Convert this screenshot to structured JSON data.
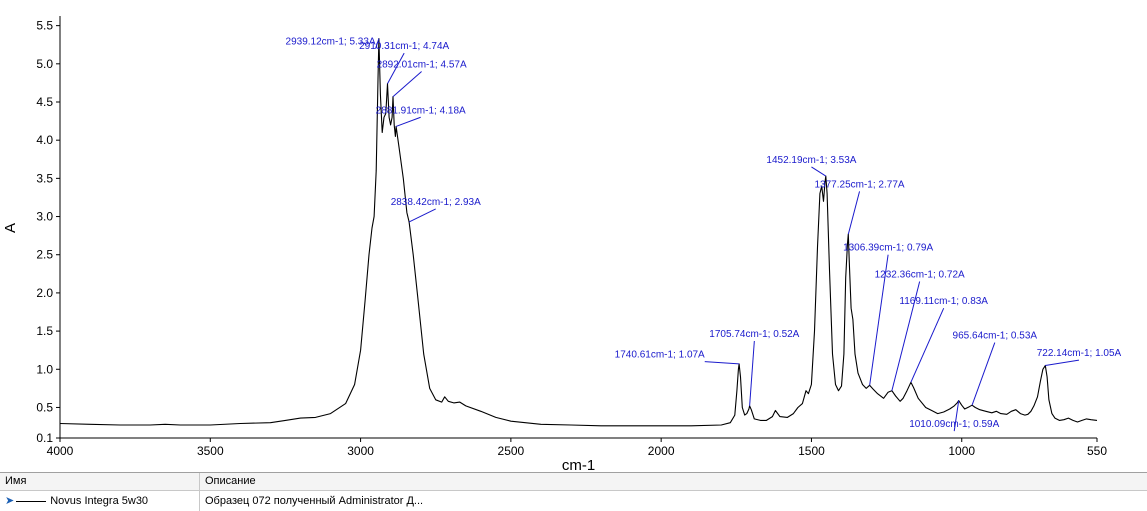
{
  "chart_data": {
    "type": "line",
    "xlabel": "cm-1",
    "ylabel": "A",
    "xlim": [
      4000,
      550
    ],
    "ylim": [
      0.1,
      5.6
    ],
    "x_ticks": [
      4000,
      3500,
      3000,
      2500,
      2000,
      1500,
      1000,
      550
    ],
    "y_ticks": [
      0.1,
      0.5,
      1.0,
      1.5,
      2.0,
      2.5,
      3.0,
      3.5,
      4.0,
      4.5,
      5.0,
      5.5
    ],
    "x_tick_labels": [
      "4000",
      "3500",
      "3000",
      "2500",
      "2000",
      "1500",
      "1000",
      "550"
    ],
    "y_tick_labels": [
      "0.1",
      "0.5",
      "1.0",
      "1.5",
      "2.0",
      "2.5",
      "3.0",
      "3.5",
      "4.0",
      "4.5",
      "5.0",
      "5.5"
    ],
    "grid": false,
    "series": [
      {
        "name": "Novus Integra 5w30",
        "color": "#000000",
        "points": [
          [
            4000,
            0.29
          ],
          [
            3900,
            0.28
          ],
          [
            3800,
            0.27
          ],
          [
            3700,
            0.27
          ],
          [
            3650,
            0.28
          ],
          [
            3600,
            0.27
          ],
          [
            3500,
            0.27
          ],
          [
            3400,
            0.29
          ],
          [
            3300,
            0.3
          ],
          [
            3250,
            0.33
          ],
          [
            3200,
            0.36
          ],
          [
            3150,
            0.37
          ],
          [
            3100,
            0.42
          ],
          [
            3050,
            0.55
          ],
          [
            3020,
            0.8
          ],
          [
            3000,
            1.25
          ],
          [
            2985,
            1.9
          ],
          [
            2972,
            2.5
          ],
          [
            2962,
            2.85
          ],
          [
            2955,
            3.0
          ],
          [
            2948,
            3.6
          ],
          [
            2942,
            4.8
          ],
          [
            2939.12,
            5.33
          ],
          [
            2934,
            4.6
          ],
          [
            2928,
            4.1
          ],
          [
            2922,
            4.3
          ],
          [
            2916,
            4.35
          ],
          [
            2910.31,
            4.74
          ],
          [
            2905,
            4.3
          ],
          [
            2900,
            4.2
          ],
          [
            2895,
            4.3
          ],
          [
            2892.01,
            4.57
          ],
          [
            2888,
            4.2
          ],
          [
            2884,
            4.05
          ],
          [
            2881.91,
            4.18
          ],
          [
            2872,
            3.9
          ],
          [
            2858,
            3.5
          ],
          [
            2846,
            3.05
          ],
          [
            2838.42,
            2.93
          ],
          [
            2825,
            2.5
          ],
          [
            2810,
            1.95
          ],
          [
            2790,
            1.2
          ],
          [
            2770,
            0.75
          ],
          [
            2750,
            0.6
          ],
          [
            2730,
            0.57
          ],
          [
            2720,
            0.64
          ],
          [
            2708,
            0.58
          ],
          [
            2690,
            0.56
          ],
          [
            2670,
            0.57
          ],
          [
            2650,
            0.52
          ],
          [
            2600,
            0.45
          ],
          [
            2550,
            0.37
          ],
          [
            2500,
            0.32
          ],
          [
            2400,
            0.28
          ],
          [
            2300,
            0.27
          ],
          [
            2200,
            0.26
          ],
          [
            2100,
            0.26
          ],
          [
            2000,
            0.26
          ],
          [
            1900,
            0.26
          ],
          [
            1800,
            0.27
          ],
          [
            1770,
            0.3
          ],
          [
            1755,
            0.4
          ],
          [
            1748,
            0.72
          ],
          [
            1743,
            1.0
          ],
          [
            1740.61,
            1.07
          ],
          [
            1736,
            0.9
          ],
          [
            1730,
            0.5
          ],
          [
            1722,
            0.4
          ],
          [
            1715,
            0.42
          ],
          [
            1708,
            0.48
          ],
          [
            1705.74,
            0.52
          ],
          [
            1700,
            0.47
          ],
          [
            1690,
            0.35
          ],
          [
            1670,
            0.33
          ],
          [
            1650,
            0.33
          ],
          [
            1630,
            0.38
          ],
          [
            1620,
            0.46
          ],
          [
            1605,
            0.38
          ],
          [
            1580,
            0.37
          ],
          [
            1560,
            0.42
          ],
          [
            1545,
            0.5
          ],
          [
            1530,
            0.55
          ],
          [
            1518,
            0.72
          ],
          [
            1510,
            0.68
          ],
          [
            1500,
            0.8
          ],
          [
            1490,
            1.5
          ],
          [
            1480,
            2.6
          ],
          [
            1472,
            3.3
          ],
          [
            1466,
            3.4
          ],
          [
            1460,
            3.2
          ],
          [
            1455,
            3.45
          ],
          [
            1452.19,
            3.53
          ],
          [
            1448,
            3.3
          ],
          [
            1440,
            2.3
          ],
          [
            1430,
            1.2
          ],
          [
            1420,
            0.8
          ],
          [
            1410,
            0.72
          ],
          [
            1400,
            0.78
          ],
          [
            1392,
            1.2
          ],
          [
            1386,
            2.2
          ],
          [
            1380,
            2.65
          ],
          [
            1377.25,
            2.77
          ],
          [
            1374,
            2.4
          ],
          [
            1368,
            1.8
          ],
          [
            1362,
            1.65
          ],
          [
            1355,
            1.2
          ],
          [
            1345,
            0.95
          ],
          [
            1330,
            0.8
          ],
          [
            1318,
            0.75
          ],
          [
            1306.39,
            0.79
          ],
          [
            1295,
            0.74
          ],
          [
            1280,
            0.68
          ],
          [
            1260,
            0.62
          ],
          [
            1245,
            0.7
          ],
          [
            1232.36,
            0.72
          ],
          [
            1220,
            0.65
          ],
          [
            1205,
            0.58
          ],
          [
            1195,
            0.62
          ],
          [
            1182,
            0.72
          ],
          [
            1169.11,
            0.83
          ],
          [
            1160,
            0.76
          ],
          [
            1145,
            0.62
          ],
          [
            1120,
            0.5
          ],
          [
            1100,
            0.46
          ],
          [
            1080,
            0.42
          ],
          [
            1060,
            0.44
          ],
          [
            1040,
            0.48
          ],
          [
            1025,
            0.52
          ],
          [
            1015,
            0.56
          ],
          [
            1010.09,
            0.59
          ],
          [
            1000,
            0.53
          ],
          [
            990,
            0.48
          ],
          [
            975,
            0.51
          ],
          [
            965.64,
            0.53
          ],
          [
            955,
            0.5
          ],
          [
            940,
            0.47
          ],
          [
            920,
            0.45
          ],
          [
            900,
            0.43
          ],
          [
            885,
            0.45
          ],
          [
            870,
            0.42
          ],
          [
            850,
            0.41
          ],
          [
            835,
            0.45
          ],
          [
            820,
            0.47
          ],
          [
            805,
            0.42
          ],
          [
            790,
            0.4
          ],
          [
            780,
            0.41
          ],
          [
            770,
            0.45
          ],
          [
            760,
            0.52
          ],
          [
            748,
            0.64
          ],
          [
            738,
            0.85
          ],
          [
            730,
            1.0
          ],
          [
            722.14,
            1.05
          ],
          [
            716,
            0.9
          ],
          [
            710,
            0.6
          ],
          [
            700,
            0.42
          ],
          [
            690,
            0.36
          ],
          [
            675,
            0.33
          ],
          [
            660,
            0.34
          ],
          [
            645,
            0.36
          ],
          [
            630,
            0.33
          ],
          [
            615,
            0.31
          ],
          [
            600,
            0.33
          ],
          [
            585,
            0.35
          ],
          [
            570,
            0.34
          ],
          [
            550,
            0.33
          ]
        ]
      }
    ],
    "annotations": [
      {
        "text": "2939.12cm-1; 5.33A",
        "x": 2939.12,
        "y": 5.33,
        "label_x": 2950,
        "label_y": 5.2,
        "label_dx": -1,
        "align": "end"
      },
      {
        "text": "2910.31cm-1; 4.74A",
        "x": 2910.31,
        "y": 4.74,
        "label_x": 2855,
        "label_y": 5.14,
        "label_dx": 1,
        "align": "middle"
      },
      {
        "text": "2892.01cm-1; 4.57A",
        "x": 2892.01,
        "y": 4.57,
        "label_x": 2797,
        "label_y": 4.9,
        "label_dx": 1,
        "align": "middle"
      },
      {
        "text": "2881.91cm-1; 4.18A",
        "x": 2881.91,
        "y": 4.18,
        "label_x": 2800,
        "label_y": 4.3,
        "label_dx": 1,
        "align": "middle"
      },
      {
        "text": "2838.42cm-1; 2.93A",
        "x": 2838.42,
        "y": 2.93,
        "label_x": 2750,
        "label_y": 3.1,
        "label_dx": 1,
        "align": "middle"
      },
      {
        "text": "1740.61cm-1; 1.07A",
        "x": 1740.61,
        "y": 1.07,
        "label_x": 1855,
        "label_y": 1.1,
        "label_dx": -1,
        "align": "end"
      },
      {
        "text": "1705.74cm-1; 0.52A",
        "x": 1705.74,
        "y": 0.52,
        "label_x": 1690,
        "label_y": 1.37,
        "label_dx": 1,
        "align": "middle"
      },
      {
        "text": "1452.19cm-1; 3.53A",
        "x": 1452.19,
        "y": 3.53,
        "label_x": 1500,
        "label_y": 3.65,
        "label_dx": 1,
        "align": "middle"
      },
      {
        "text": "1377.25cm-1; 2.77A",
        "x": 1377.25,
        "y": 2.77,
        "label_x": 1340,
        "label_y": 3.33,
        "label_dx": 1,
        "align": "middle"
      },
      {
        "text": "1306.39cm-1; 0.79A",
        "x": 1306.39,
        "y": 0.79,
        "label_x": 1245,
        "label_y": 2.5,
        "label_dx": 1,
        "align": "middle"
      },
      {
        "text": "1232.36cm-1; 0.72A",
        "x": 1232.36,
        "y": 0.72,
        "label_x": 1140,
        "label_y": 2.15,
        "label_dx": 1,
        "align": "middle"
      },
      {
        "text": "1169.11cm-1; 0.83A",
        "x": 1169.11,
        "y": 0.83,
        "label_x": 1060,
        "label_y": 1.8,
        "label_dx": 1,
        "align": "middle"
      },
      {
        "text": "965.64cm-1; 0.53A",
        "x": 965.64,
        "y": 0.53,
        "label_x": 890,
        "label_y": 1.35,
        "label_dx": 1,
        "align": "middle"
      },
      {
        "text": "1010.09cm-1; 0.59A",
        "x": 1010.09,
        "y": 0.59,
        "label_x": 1025,
        "label_y": 0.19,
        "label_dx": 1,
        "align": "middle"
      },
      {
        "text": "722.14cm-1; 1.05A",
        "x": 722.14,
        "y": 1.05,
        "label_x": 610,
        "label_y": 1.12,
        "label_dx": 1,
        "align": "middle"
      }
    ]
  },
  "legend_table": {
    "headers": {
      "name": "Имя",
      "description": "Описание"
    },
    "rows": [
      {
        "name": "Novus Integra 5w30",
        "description": "Образец 072 полученный Administrator Д...",
        "color": "#000000"
      }
    ]
  }
}
